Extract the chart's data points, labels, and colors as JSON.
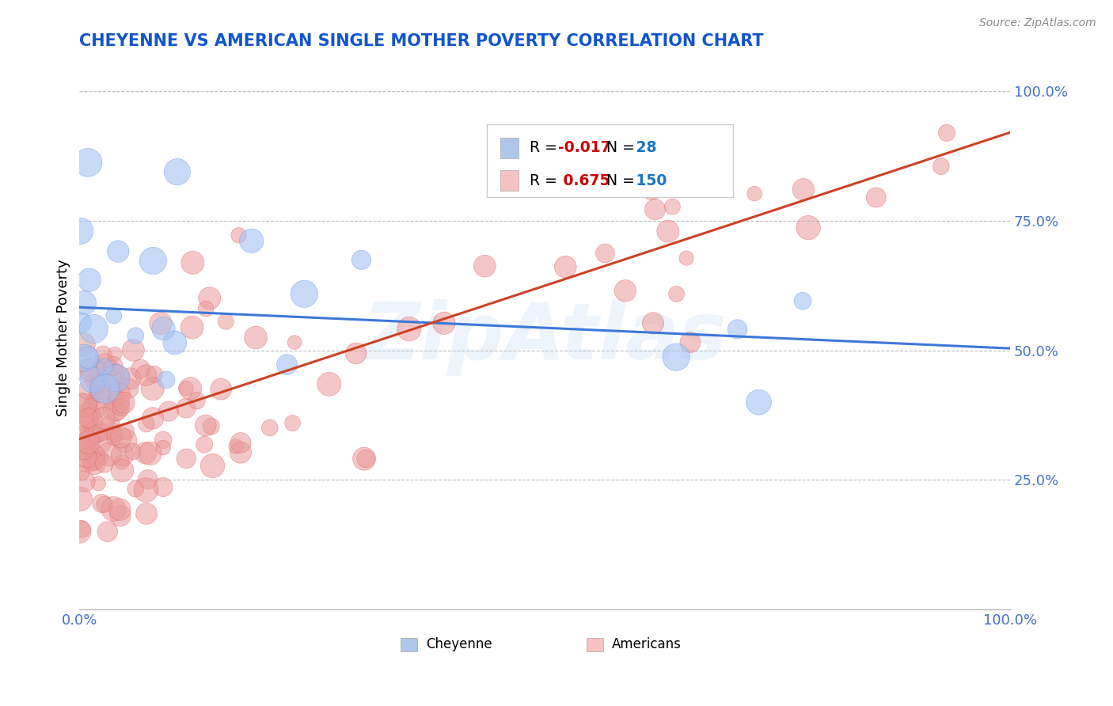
{
  "title": "CHEYENNE VS AMERICAN SINGLE MOTHER POVERTY CORRELATION CHART",
  "source": "Source: ZipAtlas.com",
  "ylabel": "Single Mother Poverty",
  "cheyenne_color": "#a4c2f4",
  "cheyenne_edge": "#6d9eeb",
  "americans_color": "#ea9999",
  "americans_edge": "#e06666",
  "reg_blue": "#3c78d8",
  "reg_pink": "#cc4125",
  "legend_R_blue": "-0.017",
  "legend_N_blue": 28,
  "legend_R_pink": "0.675",
  "legend_N_pink": 150,
  "cheyenne_label": "Cheyenne",
  "americans_label": "Americans",
  "title_color": "#1155cc",
  "watermark": "ZipAtlas",
  "background": "#ffffff"
}
